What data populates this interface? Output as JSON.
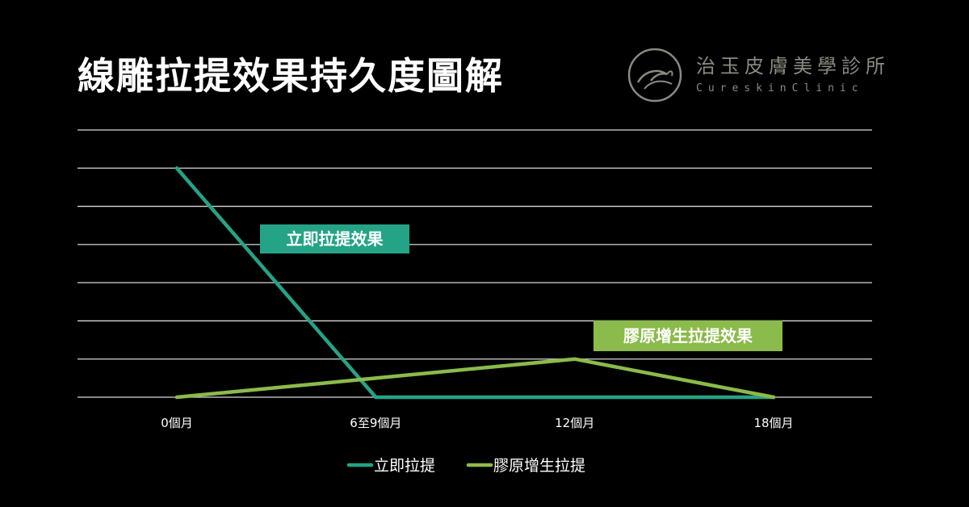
{
  "header": {
    "title": "線雕拉提效果持久度圖解"
  },
  "brand": {
    "name": "治玉皮膚美學診所",
    "subtitle": "CureskinClinic",
    "logo_icon": "swan-circle-logo-icon"
  },
  "colors": {
    "background": "#000000",
    "series_teal": "#25a386",
    "series_green": "#8bbb4a",
    "grid": "#d9d9d9",
    "text": "#ffffff"
  },
  "chart_data": {
    "type": "line",
    "categories": [
      "0個月",
      "6至9個月",
      "12個月",
      "18個月"
    ],
    "series": [
      {
        "name": "立即拉提",
        "color": "#25a386",
        "values": [
          6,
          0,
          0,
          0
        ]
      },
      {
        "name": "膠原增生拉提",
        "color": "#8bbb4a",
        "values": [
          0,
          0.5,
          1,
          0
        ]
      }
    ],
    "ylim": [
      0,
      7
    ],
    "grid": true,
    "legend": "bottom",
    "annotations": [
      {
        "text": "立即拉提效果",
        "series": "立即拉提"
      },
      {
        "text": "膠原增生拉提效果",
        "series": "膠原增生拉提"
      }
    ],
    "title": "",
    "xlabel": "",
    "ylabel": ""
  }
}
